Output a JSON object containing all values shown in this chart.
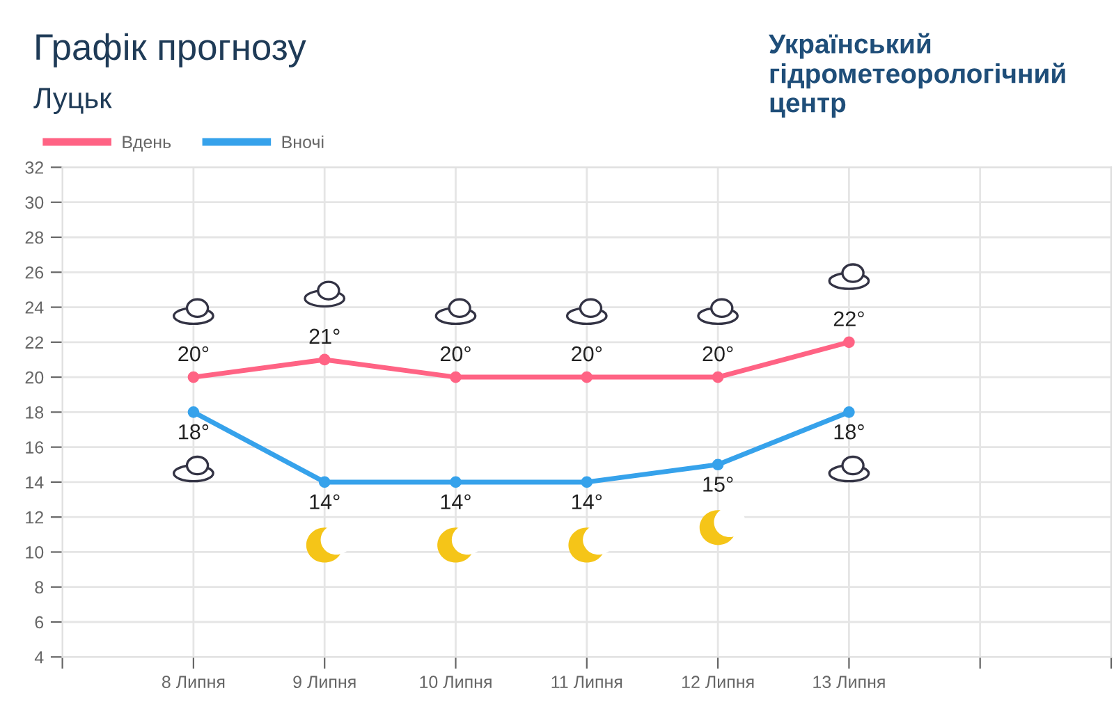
{
  "chart_data": {
    "type": "line",
    "title": "Графік прогнозу",
    "subtitle": "Луцьк",
    "annotations": [
      "Український гідрометеорологічний центр"
    ],
    "categories": [
      null,
      "8 Липня",
      "9 Липня",
      "10 Липня",
      "11 Липня",
      "12 Липня",
      "13 Липня",
      null,
      null
    ],
    "series": [
      {
        "name": "Вдень",
        "color": "#ff6384",
        "values": [
          null,
          20,
          21,
          20,
          20,
          20,
          22,
          null,
          null
        ],
        "value_labels": [
          null,
          "20°",
          "21°",
          "20°",
          "20°",
          "20°",
          "22°",
          null,
          null
        ]
      },
      {
        "name": "Вночі",
        "color": "#36a2eb",
        "values": [
          null,
          18,
          14,
          14,
          14,
          15,
          18,
          null,
          null
        ],
        "value_labels": [
          null,
          "18°",
          "14°",
          "14°",
          "14°",
          "15°",
          "18°",
          null,
          null
        ]
      }
    ],
    "ylim": [
      4,
      32
    ],
    "yticks": [
      4,
      6,
      8,
      10,
      12,
      14,
      16,
      18,
      20,
      22,
      24,
      26,
      28,
      30,
      32
    ],
    "grid": true,
    "legend": "top left",
    "marker": "circle",
    "line_style": "solid"
  }
}
